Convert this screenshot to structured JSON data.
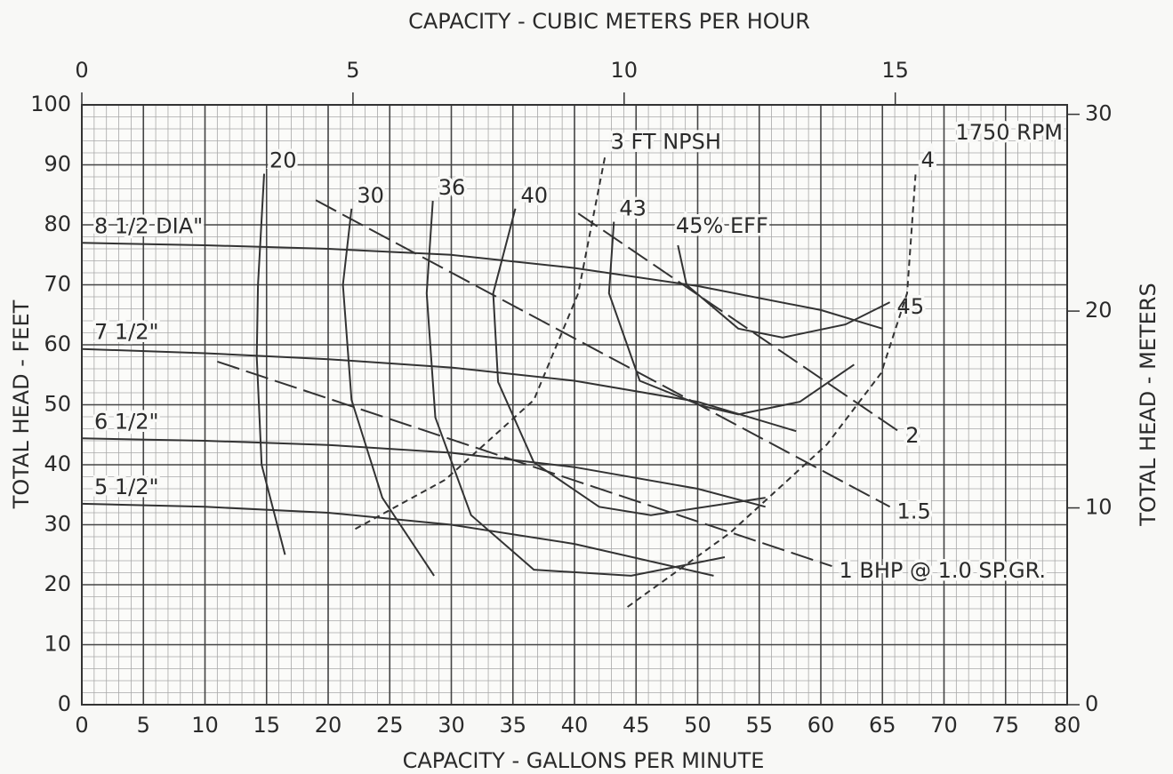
{
  "chart_data": {
    "type": "line",
    "xlabel": "CAPACITY - GALLONS PER MINUTE",
    "x2label": "CAPACITY - CUBIC METERS PER HOUR",
    "ylabel": "TOTAL HEAD - FEET",
    "y2label": "TOTAL HEAD - METERS",
    "annotations": [
      "1750 RPM",
      "45% EFF"
    ],
    "xlim": [
      0,
      80
    ],
    "xticks": [
      0,
      5,
      10,
      15,
      20,
      25,
      30,
      35,
      40,
      45,
      50,
      55,
      60,
      65,
      70,
      75,
      80
    ],
    "ylim": [
      0,
      100
    ],
    "yticks": [
      0,
      10,
      20,
      30,
      40,
      50,
      60,
      70,
      80,
      90,
      100
    ],
    "x2lim": [
      0,
      18.17
    ],
    "x2ticks": [
      0,
      5,
      10,
      15
    ],
    "y2lim": [
      0,
      30.48
    ],
    "y2ticks": [
      0,
      10,
      20,
      30
    ],
    "grid": true,
    "series": [
      {
        "name": "8 1/2 DIA\"",
        "color": "#333333",
        "line_style": "solid",
        "x": [
          0,
          10,
          20,
          30,
          40,
          50,
          60,
          65
        ],
        "values": [
          77,
          76.6,
          76,
          75,
          72.8,
          69.8,
          65.8,
          62.7
        ]
      },
      {
        "name": "7 1/2\"",
        "color": "#333333",
        "line_style": "solid",
        "x": [
          0,
          10,
          20,
          30,
          40,
          50,
          58
        ],
        "values": [
          59.3,
          58.6,
          57.6,
          56.2,
          54,
          50.5,
          45.6
        ]
      },
      {
        "name": "6 1/2\"",
        "color": "#333333",
        "line_style": "solid",
        "x": [
          0,
          10,
          20,
          30,
          40,
          50,
          55.5
        ],
        "values": [
          44.4,
          44,
          43.3,
          42,
          39.6,
          36,
          33
        ]
      },
      {
        "name": "5 1/2\"",
        "color": "#333333",
        "line_style": "solid",
        "x": [
          0,
          10,
          20,
          30,
          40,
          51.3
        ],
        "values": [
          33.5,
          33,
          32,
          30,
          26.8,
          21.5
        ]
      },
      {
        "name": "20",
        "color": "#333333",
        "line_style": "solid",
        "x": [
          14.8,
          14.3,
          14.2,
          14.6,
          16.5
        ],
        "values": [
          88.5,
          70,
          58,
          40,
          25
        ]
      },
      {
        "name": "30",
        "color": "#333333",
        "line_style": "solid",
        "x": [
          21.9,
          21.2,
          21.9,
          24.4,
          28.6
        ],
        "values": [
          82.7,
          70,
          50.8,
          34.5,
          21.5
        ]
      },
      {
        "name": "36",
        "color": "#333333",
        "line_style": "solid",
        "x": [
          28.5,
          28,
          28.7,
          31.6,
          36.7,
          44.6,
          52.2
        ],
        "values": [
          84,
          68.6,
          47.9,
          31.6,
          22.5,
          21.5,
          24.6
        ]
      },
      {
        "name": "40",
        "color": "#333333",
        "line_style": "solid",
        "x": [
          35.2,
          33.4,
          33.8,
          36.7,
          42,
          46.2,
          55.5
        ],
        "values": [
          82.7,
          68.6,
          53.8,
          40.4,
          33,
          31.6,
          34.5
        ]
      },
      {
        "name": "43",
        "color": "#333333",
        "line_style": "solid",
        "x": [
          43.2,
          42.8,
          45.3,
          50.4,
          53.3,
          58.3,
          62.7
        ],
        "values": [
          80.5,
          68.6,
          54,
          49.8,
          48.4,
          50.5,
          56.7
        ]
      },
      {
        "name": "45",
        "color": "#333333",
        "line_style": "solid",
        "x": [
          48.4,
          49.1,
          53.3,
          56.9,
          62,
          65.6
        ],
        "values": [
          76.6,
          70,
          62.7,
          61.2,
          63.4,
          67.1
        ]
      },
      {
        "name": "1 BHP @ 1.0 SP.GR.",
        "color": "#333333",
        "line_style": "long-dash",
        "x": [
          11,
          60.9
        ],
        "values": [
          57.2,
          23.1
        ]
      },
      {
        "name": "1.5",
        "color": "#333333",
        "line_style": "long-dash",
        "x": [
          19,
          65.6
        ],
        "values": [
          84.1,
          33
        ]
      },
      {
        "name": "2",
        "color": "#333333",
        "line_style": "long-dash",
        "x": [
          40.3,
          66.3
        ],
        "values": [
          81.9,
          45.6
        ]
      },
      {
        "name": "3 FT NPSH",
        "color": "#333333",
        "line_style": "dashed",
        "x": [
          22.2,
          29.5,
          36.7,
          40.3,
          42.5
        ],
        "values": [
          29.3,
          37.5,
          50.8,
          68.6,
          91.6
        ]
      },
      {
        "name": "4",
        "color": "#333333",
        "line_style": "dashed",
        "x": [
          44.3,
          52.6,
          60.5,
          64.9,
          67,
          67.7
        ],
        "values": [
          16.3,
          28.6,
          43.4,
          55.3,
          68.6,
          88.6
        ]
      }
    ]
  }
}
